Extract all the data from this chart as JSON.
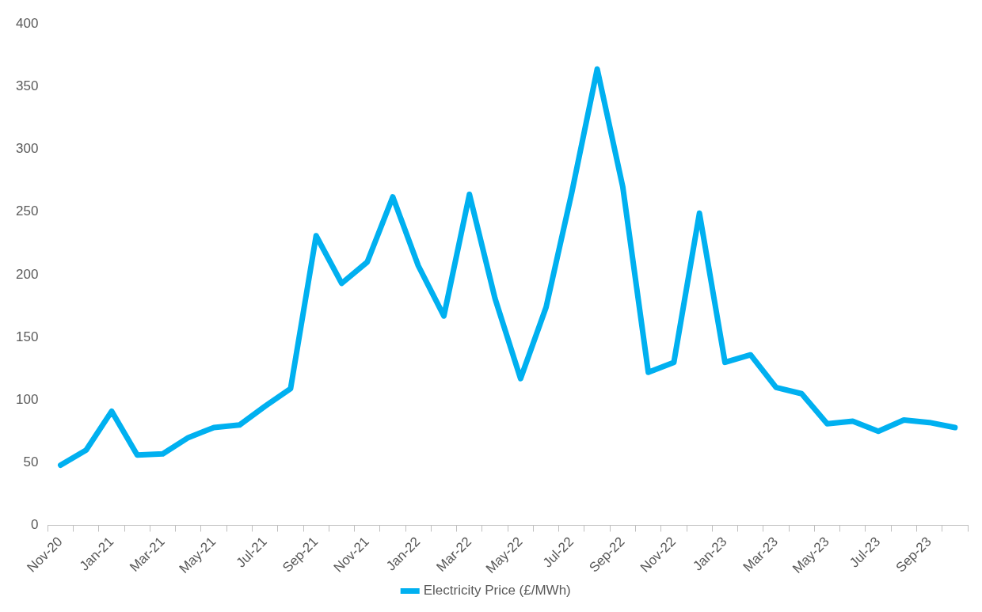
{
  "chart_data": {
    "type": "line",
    "categories": [
      "Nov-20",
      null,
      "Jan-21",
      null,
      "Mar-21",
      null,
      "May-21",
      null,
      "Jul-21",
      null,
      "Sep-21",
      null,
      "Nov-21",
      null,
      "Jan-22",
      null,
      "Mar-22",
      null,
      "May-22",
      null,
      "Jul-22",
      null,
      "Sep-22",
      null,
      "Nov-22",
      null,
      "Jan-23",
      null,
      "Mar-23",
      null,
      "May-23",
      null,
      "Jul-23",
      null,
      "Sep-23",
      null
    ],
    "series": [
      {
        "name": "Electricity Price (£/MWh)",
        "color": "#00b0f0",
        "values": [
          48,
          60,
          91,
          56,
          57,
          70,
          78,
          80,
          95,
          109,
          231,
          193,
          210,
          262,
          207,
          167,
          264,
          181,
          117,
          174,
          265,
          364,
          270,
          122,
          130,
          249,
          130,
          136,
          110,
          105,
          81,
          83,
          75,
          84,
          82,
          78
        ]
      }
    ],
    "ylim": [
      0,
      400
    ],
    "yticks": [
      0,
      50,
      100,
      150,
      200,
      250,
      300,
      350,
      400
    ],
    "grid": false,
    "legend": "bottom",
    "marker": "none",
    "line_style": "solid"
  }
}
